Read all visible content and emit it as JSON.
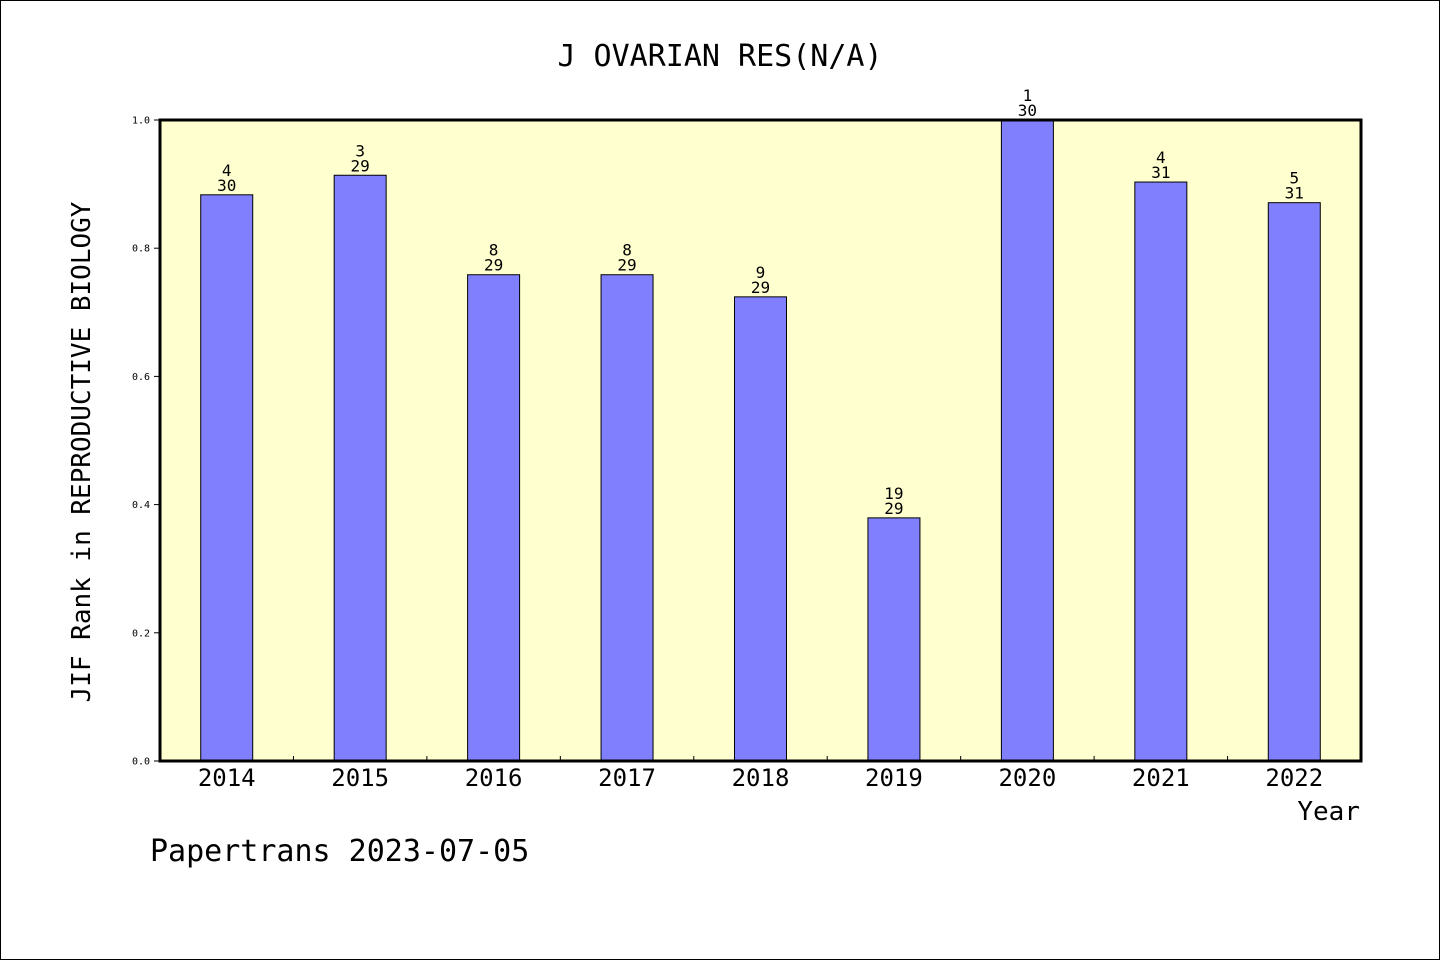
{
  "chart_data": {
    "type": "bar",
    "title": "J OVARIAN RES(N/A)",
    "xlabel": "Year",
    "ylabel": "JIF Rank in REPRODUCTIVE BIOLOGY",
    "categories": [
      "2014",
      "2015",
      "2016",
      "2017",
      "2018",
      "2019",
      "2020",
      "2021",
      "2022"
    ],
    "values": [
      0.8833,
      0.9138,
      0.7586,
      0.7586,
      0.7241,
      0.3793,
      1.0,
      0.9032,
      0.871
    ],
    "rank": [
      "4",
      "3",
      "8",
      "8",
      "9",
      "19",
      "1",
      "4",
      "5"
    ],
    "total": [
      "30",
      "29",
      "29",
      "29",
      "29",
      "29",
      "30",
      "31",
      "31"
    ],
    "ylim": [
      0,
      1.0
    ],
    "yticks": [
      "0.0",
      "0.2",
      "0.4",
      "0.6",
      "0.8",
      "1.0"
    ],
    "bar_color": "#8080ff",
    "plot_background": "#ffffd0",
    "grid": false
  },
  "footer": "Papertrans 2023-07-05"
}
